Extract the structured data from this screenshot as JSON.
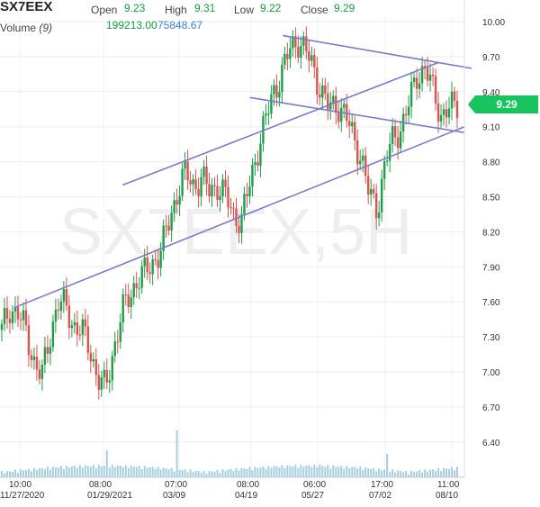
{
  "header": {
    "symbol": "SX7EEX",
    "open_label": "Open",
    "open_value": "9.23",
    "high_label": "High",
    "high_value": "9.31",
    "low_label": "Low",
    "low_value": "9.22",
    "close_label": "Close",
    "close_value": "9.29",
    "volume_label": "Volume",
    "volume_period": "(9)",
    "volume_value_1": "199213.00",
    "volume_value_2": "75848.67"
  },
  "watermark": "SX7EEX,5H",
  "current_price": "9.29",
  "colors": {
    "up": "#1f9d4a",
    "down": "#d9534f",
    "trendline": "#7b7bc8",
    "price_tag": "#17c45d",
    "volume": "#8fc3d8"
  },
  "chart_data": {
    "type": "candlestick",
    "ylim": [
      6.3,
      10.1
    ],
    "y_ticks": [
      "10.00",
      "9.70",
      "9.40",
      "9.10",
      "8.80",
      "8.50",
      "8.20",
      "7.90",
      "7.60",
      "7.30",
      "7.00",
      "6.70",
      "6.40"
    ],
    "x_tick_labels": [
      {
        "time": "10:00",
        "date": "11/27/2020"
      },
      {
        "time": "08:00",
        "date": "01/29/2021"
      },
      {
        "time": "07:00",
        "date": "03/09"
      },
      {
        "time": "08:00",
        "date": "04/19"
      },
      {
        "time": "06:00",
        "date": "05/27"
      },
      {
        "time": "17:00",
        "date": "07/02"
      },
      {
        "time": "11:00",
        "date": "08/10"
      }
    ],
    "closes": [
      7.35,
      7.55,
      7.5,
      7.35,
      7.1,
      6.95,
      7.3,
      7.6,
      7.55,
      7.4,
      7.35,
      7.2,
      6.95,
      6.85,
      7.2,
      7.5,
      7.65,
      7.8,
      7.85,
      7.95,
      8.05,
      8.3,
      8.55,
      8.7,
      8.6,
      8.65,
      8.55,
      8.6,
      8.5,
      8.35,
      8.3,
      8.6,
      8.9,
      9.15,
      9.4,
      9.55,
      9.75,
      9.85,
      9.75,
      9.6,
      9.4,
      9.25,
      9.3,
      9.2,
      9.0,
      8.85,
      8.5,
      8.4,
      8.8,
      9.0,
      9.1,
      9.3,
      9.55,
      9.6,
      9.4,
      9.2,
      9.25,
      9.29
    ],
    "trendlines": [
      {
        "from": [
          0.03,
          7.55
        ],
        "to": [
          0.985,
          9.1
        ]
      },
      {
        "from": [
          0.26,
          8.6
        ],
        "to": [
          0.93,
          9.65
        ]
      },
      {
        "from": [
          0.6,
          9.88
        ],
        "to": [
          1.0,
          9.6
        ]
      },
      {
        "from": [
          0.53,
          9.35
        ],
        "to": [
          0.985,
          9.05
        ]
      }
    ]
  }
}
